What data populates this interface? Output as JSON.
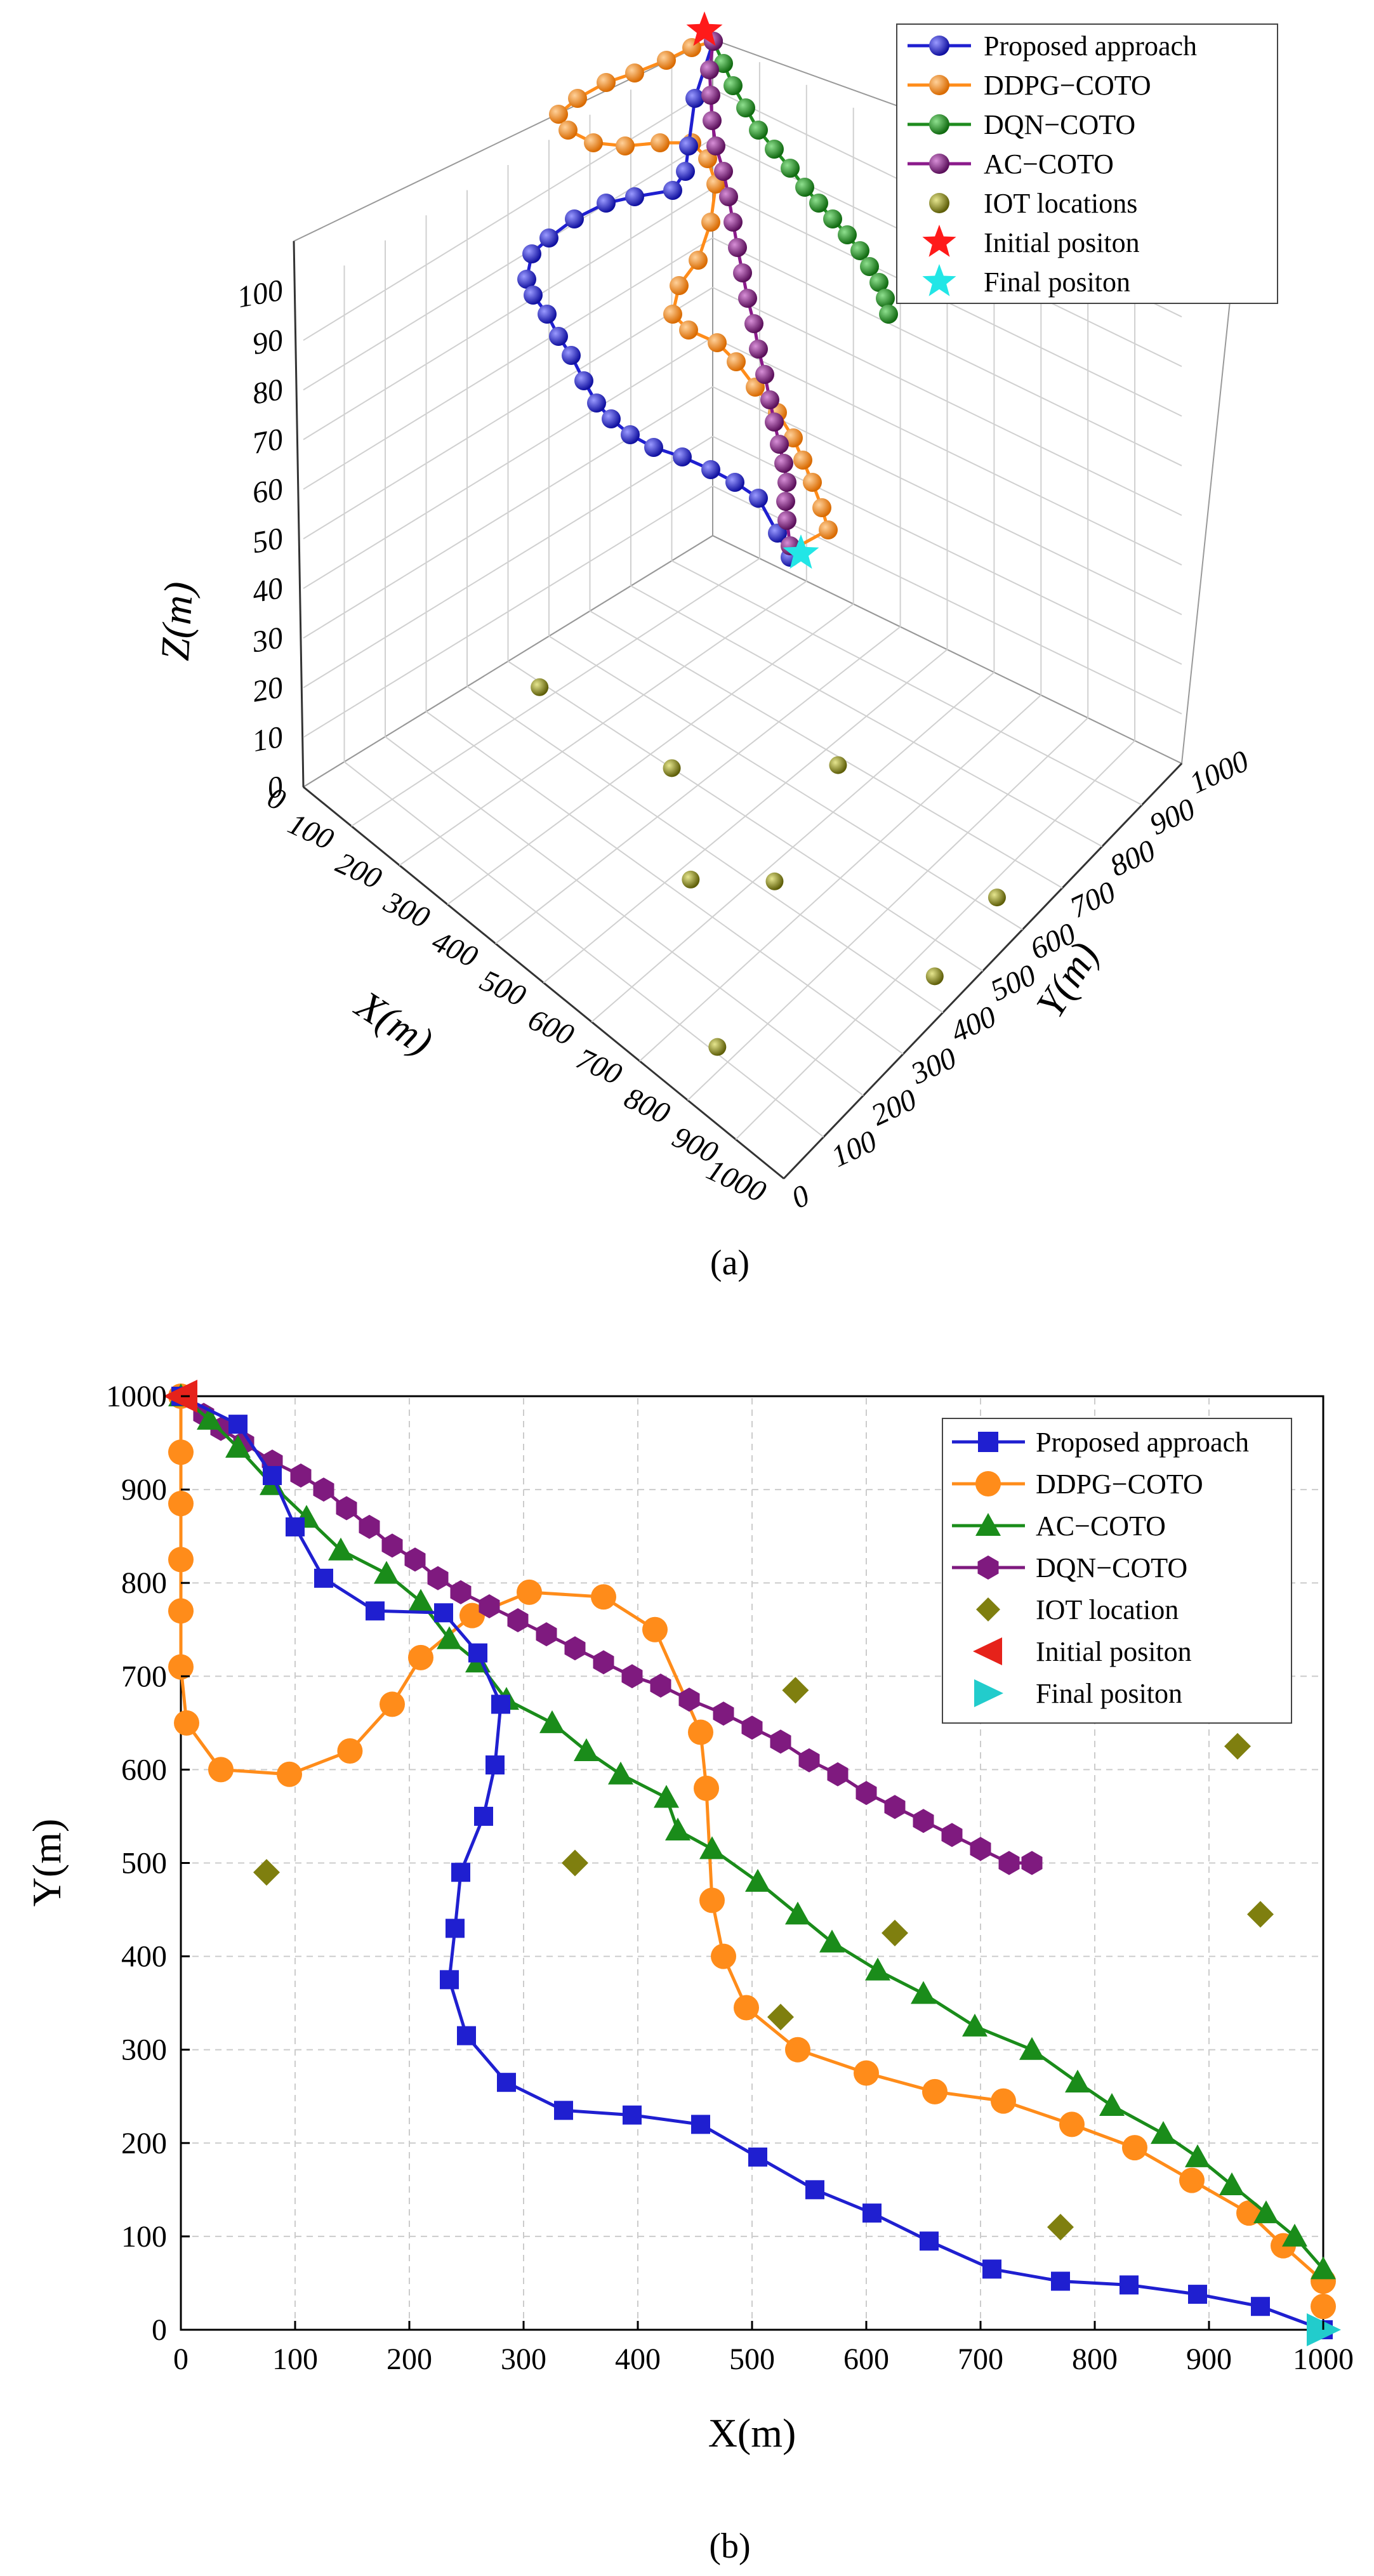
{
  "colors": {
    "proposed": "#1f1fd0",
    "ddpg": "#ff8c1a",
    "dqn3d": "#1f8c1f",
    "ac3d": "#8b1a8b",
    "ac2d": "#1a8c1a",
    "dqn2d": "#7f1a7f",
    "iot": "#7f7f0f",
    "initial3d": "#ff1a1a",
    "final3d": "#22e6e6",
    "initial2d": "#e6221a",
    "final2d": "#22cccc"
  },
  "chart_data": [
    {
      "id": "a",
      "type": "scatter3d-line",
      "caption": "(a)",
      "xlabel": "X(m)",
      "ylabel": "Y(m)",
      "zlabel": "Z(m)",
      "xticks": [
        "0",
        "100",
        "200",
        "300",
        "400",
        "500",
        "600",
        "700",
        "800",
        "900",
        "1000"
      ],
      "yticks": [
        "0",
        "100",
        "200",
        "300",
        "400",
        "500",
        "600",
        "700",
        "800",
        "900",
        "1000"
      ],
      "zticks": [
        "0",
        "10",
        "20",
        "30",
        "40",
        "50",
        "60",
        "70",
        "80",
        "90",
        "100"
      ],
      "xlim": [
        0,
        1000
      ],
      "ylim": [
        0,
        1000
      ],
      "zlim": [
        0,
        100
      ],
      "legend": {
        "position": "top-right",
        "entries": [
          {
            "label": "Proposed approach",
            "key": "proposed",
            "marker": "ball-line"
          },
          {
            "label": "DDPG−COTO",
            "key": "ddpg",
            "marker": "ball-line"
          },
          {
            "label": "DQN−COTO",
            "key": "dqn3d",
            "marker": "ball-line"
          },
          {
            "label": "AC−COTO",
            "key": "ac3d",
            "marker": "ball-line"
          },
          {
            "label": "IOT locations",
            "key": "iot",
            "marker": "ball"
          },
          {
            "label": "Initial positon",
            "key": "initial3d",
            "marker": "star"
          },
          {
            "label": "Final positon",
            "key": "final3d",
            "marker": "star"
          }
        ]
      },
      "iot_points": [
        [
          75,
          490,
          0
        ],
        [
          345,
          500,
          0
        ],
        [
          525,
          335,
          0
        ],
        [
          538,
          685,
          0
        ],
        [
          625,
          425,
          0
        ],
        [
          770,
          110,
          0
        ],
        [
          925,
          625,
          0
        ],
        [
          945,
          445,
          0
        ]
      ],
      "series": [
        {
          "name": "Proposed approach",
          "key": "proposed",
          "points": [
            [
              0,
              1000,
              100
            ],
            [
              10,
              960,
              100
            ],
            [
              80,
              920,
              100
            ],
            [
              120,
              860,
              100
            ],
            [
              170,
              780,
              100
            ],
            [
              230,
              760,
              100
            ],
            [
              270,
              720,
              100
            ],
            [
              275,
              640,
              100
            ],
            [
              258,
              530,
              100
            ],
            [
              240,
              440,
              100
            ],
            [
              240,
              360,
              100
            ],
            [
              260,
              300,
              100
            ],
            [
              300,
              250,
              100
            ],
            [
              380,
              230,
              100
            ],
            [
              460,
              210,
              100
            ],
            [
              520,
              180,
              100
            ],
            [
              600,
              130,
              100
            ],
            [
              660,
              95,
              100
            ],
            [
              720,
              65,
              100
            ],
            [
              780,
              52,
              100
            ],
            [
              840,
              45,
              100
            ],
            [
              900,
              35,
              100
            ],
            [
              960,
              20,
              100
            ],
            [
              1000,
              0,
              100
            ]
          ]
        },
        {
          "name": "DDPG−COTO",
          "key": "ddpg",
          "points": [
            [
              0,
              1000,
              100
            ],
            [
              0,
              960,
              100
            ],
            [
              0,
              900,
              100
            ],
            [
              0,
              820,
              100
            ],
            [
              0,
              740,
              100
            ],
            [
              0,
              670,
              100
            ],
            [
              30,
              610,
              100
            ],
            [
              100,
              595,
              100
            ],
            [
              150,
              625,
              100
            ],
            [
              190,
              680,
              100
            ],
            [
              220,
              730,
              100
            ],
            [
              260,
              770,
              100
            ],
            [
              310,
              792,
              100
            ],
            [
              370,
              785,
              100
            ],
            [
              415,
              745,
              100
            ],
            [
              440,
              680,
              100
            ],
            [
              455,
              600,
              100
            ],
            [
              460,
              520,
              100
            ],
            [
              470,
              440,
              100
            ],
            [
              490,
              360,
              100
            ],
            [
              540,
              300,
              100
            ],
            [
              600,
              270,
              100
            ],
            [
              660,
              255,
              100
            ],
            [
              720,
              240,
              100
            ],
            [
              780,
              220,
              100
            ],
            [
              840,
              190,
              100
            ],
            [
              890,
              150,
              100
            ],
            [
              930,
              110,
              100
            ],
            [
              970,
              70,
              100
            ],
            [
              1000,
              30,
              100
            ],
            [
              1000,
              0,
              100
            ]
          ]
        },
        {
          "name": "DQN−COTO",
          "key": "dqn3d",
          "points": [
            [
              0,
              1000,
              100
            ],
            [
              40,
              960,
              100
            ],
            [
              90,
              930,
              100
            ],
            [
              140,
              905,
              100
            ],
            [
              190,
              865,
              100
            ],
            [
              240,
              820,
              100
            ],
            [
              290,
              780,
              100
            ],
            [
              340,
              750,
              100
            ],
            [
              390,
              725,
              100
            ],
            [
              440,
              700,
              100
            ],
            [
              490,
              680,
              100
            ],
            [
              540,
              660,
              100
            ],
            [
              590,
              630,
              100
            ],
            [
              640,
              590,
              100
            ],
            [
              690,
              550,
              100
            ],
            [
              740,
              500,
              100
            ]
          ]
        },
        {
          "name": "AC−COTO",
          "key": "ac3d",
          "points": [
            [
              0,
              1000,
              100
            ],
            [
              50,
              950,
              100
            ],
            [
              100,
              880,
              100
            ],
            [
              150,
              830,
              100
            ],
            [
              200,
              790,
              100
            ],
            [
              240,
              740,
              100
            ],
            [
              280,
              680,
              100
            ],
            [
              330,
              640,
              100
            ],
            [
              380,
              600,
              100
            ],
            [
              420,
              560,
              100
            ],
            [
              470,
              500,
              100
            ],
            [
              520,
              440,
              100
            ],
            [
              580,
              390,
              100
            ],
            [
              640,
              330,
              100
            ],
            [
              690,
              280,
              100
            ],
            [
              740,
              240,
              100
            ],
            [
              790,
              200,
              100
            ],
            [
              840,
              160,
              100
            ],
            [
              890,
              110,
              100
            ],
            [
              930,
              60,
              100
            ],
            [
              970,
              20,
              100
            ],
            [
              1000,
              0,
              100
            ]
          ]
        }
      ],
      "initial_position": [
        0,
        1000,
        100
      ],
      "final_position": [
        1000,
        0,
        100
      ]
    },
    {
      "id": "b",
      "type": "line",
      "caption": "(b)",
      "xlabel": "X(m)",
      "ylabel": "Y(m)",
      "xlim": [
        0,
        1000
      ],
      "ylim": [
        0,
        1000
      ],
      "grid": true,
      "xticks": [
        "0",
        "100",
        "200",
        "300",
        "400",
        "500",
        "600",
        "700",
        "800",
        "900",
        "1000"
      ],
      "yticks": [
        "0",
        "100",
        "200",
        "300",
        "400",
        "500",
        "600",
        "700",
        "800",
        "900",
        "1000"
      ],
      "legend": {
        "position": "top-right",
        "entries": [
          {
            "label": "Proposed approach",
            "key": "proposed",
            "marker": "square"
          },
          {
            "label": "DDPG−COTO",
            "key": "ddpg",
            "marker": "circle"
          },
          {
            "label": "AC−COTO",
            "key": "ac2d",
            "marker": "triangle"
          },
          {
            "label": "DQN−COTO",
            "key": "dqn2d",
            "marker": "hexagon"
          },
          {
            "label": "IOT location",
            "key": "iot",
            "marker": "diamond"
          },
          {
            "label": "Initial positon",
            "key": "initial2d",
            "marker": "tri-left"
          },
          {
            "label": "Final positon",
            "key": "final2d",
            "marker": "tri-right"
          }
        ]
      },
      "series": [
        {
          "name": "Proposed approach",
          "key": "proposed",
          "marker": "square",
          "x": [
            0,
            50,
            80,
            100,
            125,
            170,
            230,
            260,
            280,
            275,
            265,
            245,
            240,
            235,
            250,
            285,
            335,
            395,
            455,
            505,
            555,
            605,
            655,
            710,
            770,
            830,
            890,
            945,
            1000
          ],
          "y": [
            1000,
            970,
            915,
            860,
            805,
            770,
            768,
            725,
            670,
            605,
            550,
            490,
            430,
            375,
            315,
            265,
            235,
            230,
            220,
            185,
            150,
            125,
            95,
            65,
            52,
            48,
            38,
            25,
            0
          ]
        },
        {
          "name": "DDPG−COTO",
          "key": "ddpg",
          "marker": "circle",
          "x": [
            0,
            0,
            0,
            0,
            0,
            0,
            5,
            35,
            95,
            148,
            185,
            210,
            255,
            305,
            370,
            415,
            455,
            460,
            465,
            475,
            495,
            540,
            600,
            660,
            720,
            780,
            835,
            885,
            935,
            965,
            1000,
            1000
          ],
          "y": [
            1000,
            940,
            885,
            825,
            770,
            710,
            650,
            600,
            595,
            620,
            670,
            720,
            765,
            790,
            785,
            750,
            640,
            580,
            460,
            400,
            345,
            300,
            275,
            255,
            245,
            220,
            195,
            160,
            125,
            90,
            52,
            25
          ]
        },
        {
          "name": "AC−COTO",
          "key": "ac2d",
          "marker": "triangle",
          "x": [
            0,
            25,
            50,
            80,
            110,
            140,
            180,
            210,
            235,
            260,
            285,
            325,
            355,
            385,
            425,
            435,
            465,
            505,
            540,
            570,
            610,
            650,
            695,
            745,
            785,
            815,
            860,
            890,
            920,
            950,
            975,
            1000
          ],
          "y": [
            1000,
            975,
            945,
            905,
            870,
            835,
            810,
            780,
            740,
            715,
            675,
            650,
            620,
            595,
            570,
            535,
            515,
            480,
            445,
            415,
            385,
            360,
            325,
            300,
            265,
            240,
            210,
            185,
            155,
            125,
            100,
            65
          ]
        },
        {
          "name": "DQN−COTO",
          "key": "dqn2d",
          "marker": "hexagon",
          "x": [
            20,
            35,
            55,
            80,
            105,
            125,
            145,
            165,
            185,
            205,
            225,
            245,
            270,
            295,
            320,
            345,
            370,
            395,
            420,
            445,
            475,
            500,
            525,
            550,
            575,
            600,
            625,
            650,
            675,
            700,
            725,
            745
          ],
          "y": [
            980,
            965,
            950,
            930,
            915,
            900,
            880,
            860,
            840,
            825,
            805,
            790,
            775,
            760,
            745,
            730,
            715,
            700,
            690,
            675,
            660,
            645,
            630,
            610,
            595,
            575,
            560,
            545,
            530,
            515,
            500,
            500
          ]
        }
      ],
      "iot_points": {
        "x": [
          75,
          345,
          525,
          538,
          625,
          770,
          925,
          945
        ],
        "y": [
          490,
          500,
          335,
          685,
          425,
          110,
          625,
          445
        ]
      },
      "initial_position": [
        0,
        1000
      ],
      "final_position": [
        1000,
        0
      ]
    }
  ]
}
